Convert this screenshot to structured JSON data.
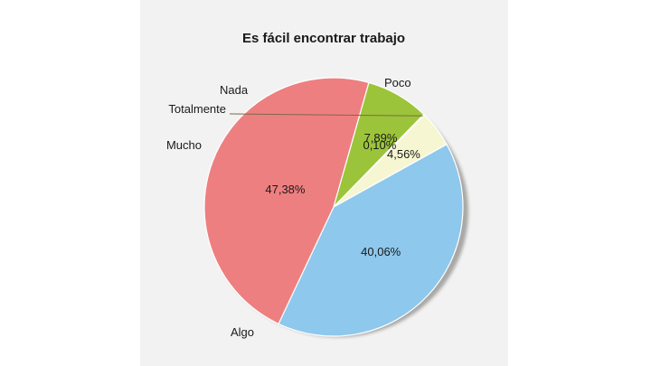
{
  "chart_data": {
    "type": "pie",
    "title": "Es fácil encontrar trabajo",
    "slices": [
      {
        "label": "Poco",
        "value": 40.06,
        "value_label": "40,06%",
        "color": "#8ec8ec"
      },
      {
        "label": "Algo",
        "value": 47.38,
        "value_label": "47,38%",
        "color": "#ee7f80"
      },
      {
        "label": "Mucho",
        "value": 7.89,
        "value_label": "7,89%",
        "color": "#9cc43a"
      },
      {
        "label": "Totalmente",
        "value": 0.1,
        "value_label": "0,10%",
        "color": "#e0a648"
      },
      {
        "label": "Nada",
        "value": 4.56,
        "value_label": "4,56%",
        "color": "#f7f6d2"
      }
    ]
  }
}
